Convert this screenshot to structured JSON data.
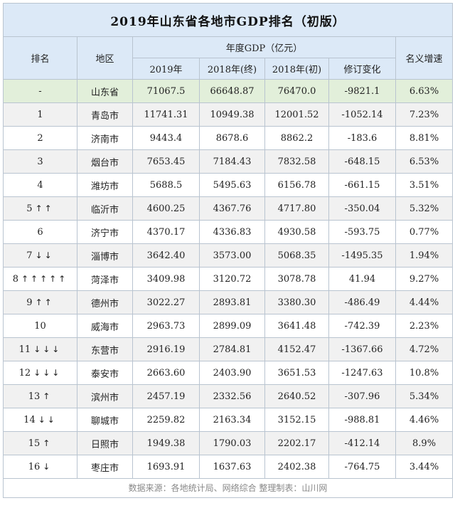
{
  "title": "2019年山东省各地市GDP排名（初版）",
  "headers": {
    "rank": "排名",
    "region": "地区",
    "gdp_group": "年度GDP（亿元）",
    "y2019": "2019年",
    "y2018_final": "2018年(终)",
    "y2018_initial": "2018年(初)",
    "revision": "修订变化",
    "growth": "名义增速"
  },
  "rows": [
    {
      "rank": "-",
      "arrows": "",
      "region": "山东省",
      "y2019": "71067.5",
      "y2018f": "66648.87",
      "y2018i": "76470.0",
      "rev": "-9821.1",
      "growth": "6.63%"
    },
    {
      "rank": "1",
      "arrows": "",
      "region": "青岛市",
      "y2019": "11741.31",
      "y2018f": "10949.38",
      "y2018i": "12001.52",
      "rev": "-1052.14",
      "growth": "7.23%"
    },
    {
      "rank": "2",
      "arrows": "",
      "region": "济南市",
      "y2019": "9443.4",
      "y2018f": "8678.6",
      "y2018i": "8862.2",
      "rev": "-183.6",
      "growth": "8.81%"
    },
    {
      "rank": "3",
      "arrows": "",
      "region": "烟台市",
      "y2019": "7653.45",
      "y2018f": "7184.43",
      "y2018i": "7832.58",
      "rev": "-648.15",
      "growth": "6.53%"
    },
    {
      "rank": "4",
      "arrows": "",
      "region": "潍坊市",
      "y2019": "5688.5",
      "y2018f": "5495.63",
      "y2018i": "6156.78",
      "rev": "-661.15",
      "growth": "3.51%"
    },
    {
      "rank": "5",
      "arrows": "↑↑",
      "region": "临沂市",
      "y2019": "4600.25",
      "y2018f": "4367.76",
      "y2018i": "4717.80",
      "rev": "-350.04",
      "growth": "5.32%"
    },
    {
      "rank": "6",
      "arrows": "",
      "region": "济宁市",
      "y2019": "4370.17",
      "y2018f": "4336.83",
      "y2018i": "4930.58",
      "rev": "-593.75",
      "growth": "0.77%"
    },
    {
      "rank": "7",
      "arrows": "↓↓",
      "region": "淄博市",
      "y2019": "3642.40",
      "y2018f": "3573.00",
      "y2018i": "5068.35",
      "rev": "-1495.35",
      "growth": "1.94%"
    },
    {
      "rank": "8",
      "arrows": "↑↑↑↑↑",
      "region": "菏泽市",
      "y2019": "3409.98",
      "y2018f": "3120.72",
      "y2018i": "3078.78",
      "rev": "41.94",
      "growth": "9.27%"
    },
    {
      "rank": "9",
      "arrows": "↑↑",
      "region": "德州市",
      "y2019": "3022.27",
      "y2018f": "2893.81",
      "y2018i": "3380.30",
      "rev": "-486.49",
      "growth": "4.44%"
    },
    {
      "rank": "10",
      "arrows": "",
      "region": "威海市",
      "y2019": "2963.73",
      "y2018f": "2899.09",
      "y2018i": "3641.48",
      "rev": "-742.39",
      "growth": "2.23%"
    },
    {
      "rank": "11",
      "arrows": "↓↓↓",
      "region": "东营市",
      "y2019": "2916.19",
      "y2018f": "2784.81",
      "y2018i": "4152.47",
      "rev": "-1367.66",
      "growth": "4.72%"
    },
    {
      "rank": "12",
      "arrows": "↓↓↓",
      "region": "泰安市",
      "y2019": "2663.60",
      "y2018f": "2403.90",
      "y2018i": "3651.53",
      "rev": "-1247.63",
      "growth": "10.8%"
    },
    {
      "rank": "13",
      "arrows": "↑",
      "region": "滨州市",
      "y2019": "2457.19",
      "y2018f": "2332.56",
      "y2018i": "2640.52",
      "rev": "-307.96",
      "growth": "5.34%"
    },
    {
      "rank": "14",
      "arrows": "↓↓",
      "region": "聊城市",
      "y2019": "2259.82",
      "y2018f": "2163.34",
      "y2018i": "3152.15",
      "rev": "-988.81",
      "growth": "4.46%"
    },
    {
      "rank": "15",
      "arrows": "↑",
      "region": "日照市",
      "y2019": "1949.38",
      "y2018f": "1790.03",
      "y2018i": "2202.17",
      "rev": "-412.14",
      "growth": "8.9%"
    },
    {
      "rank": "16",
      "arrows": "↓",
      "region": "枣庄市",
      "y2019": "1693.91",
      "y2018f": "1637.63",
      "y2018i": "2402.38",
      "rev": "-764.75",
      "growth": "3.44%"
    }
  ],
  "footer": "数据来源：各地统计局、网络综合    整理制表：山川网",
  "colors": {
    "header_bg": "#dce9f7",
    "province_row_bg": "#e2efda",
    "alt_row_bg": "#f1f1f1",
    "border": "#b9c4d0"
  }
}
